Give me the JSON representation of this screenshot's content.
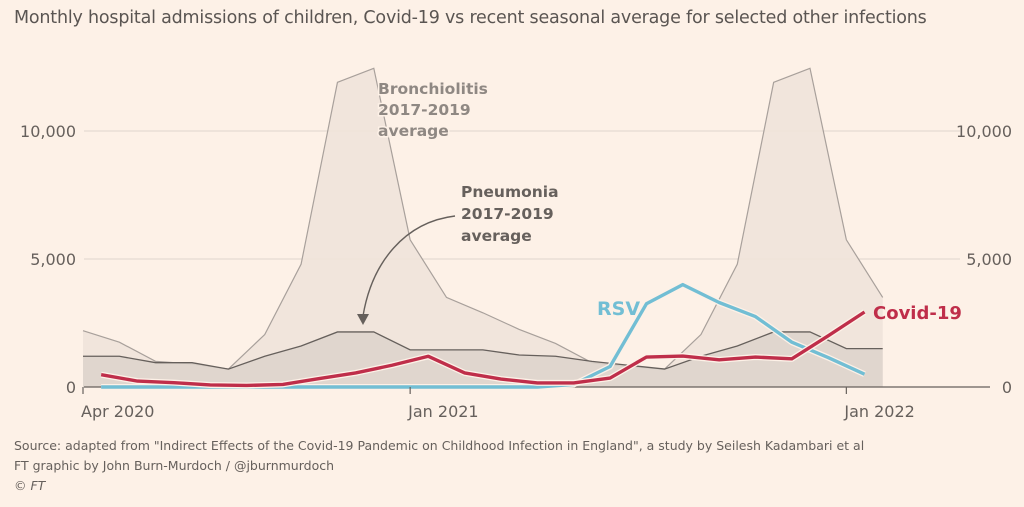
{
  "title": "Monthly hospital admissions of children, Covid-19 vs recent seasonal average for selected other infections",
  "source": {
    "line1": "Source: adapted from \"Indirect Effects of the Covid-19 Pandemic on Childhood Infection in England\",  a study by Seilesh Kadambari et al",
    "line2": "FT graphic by John Burn-Murdoch / @jburnmurdoch",
    "copyright_symbol": "©",
    "copyright_text": "FT"
  },
  "colors": {
    "background": "#fdf1e7",
    "bronchiolitis_fill": "#efe3da",
    "bronchiolitis_line": "#a8a09b",
    "pneumonia_fill": "#ddd3cb",
    "pneumonia_line": "#66605c",
    "rsv": "#72bed4",
    "covid": "#bf2e4a",
    "grid": "#e5dbd2",
    "annotation_grey": "#8f8883",
    "annotation_dark": "#66605c"
  },
  "chart_data": {
    "type": "line",
    "title": "Monthly hospital admissions of children, Covid-19 vs recent seasonal average for selected other infections",
    "xlabel": "",
    "ylabel": "",
    "ylim": [
      0,
      13000
    ],
    "yticks": [
      {
        "value": 0,
        "label": "0"
      },
      {
        "value": 5000,
        "label": "5,000"
      },
      {
        "value": 10000,
        "label": "10,000"
      }
    ],
    "xticks": [
      {
        "month_index": 0,
        "label": "Apr 2020"
      },
      {
        "month_index": 9,
        "label": "Jan 2021"
      },
      {
        "month_index": 21,
        "label": "Jan 2022"
      }
    ],
    "x_start": "Apr 2020",
    "x_months": [
      "Apr 2020",
      "May 2020",
      "Jun 2020",
      "Jul 2020",
      "Aug 2020",
      "Sep 2020",
      "Oct 2020",
      "Nov 2020",
      "Dec 2020",
      "Jan 2021",
      "Feb 2021",
      "Mar 2021",
      "Apr 2021",
      "May 2021",
      "Jun 2021",
      "Jul 2021",
      "Aug 2021",
      "Sep 2021",
      "Oct 2021",
      "Nov 2021",
      "Dec 2021",
      "Jan 2022",
      "Feb 2022"
    ],
    "grid": true,
    "series": [
      {
        "name": "Bronchiolitis 2017-2019 average",
        "kind": "area",
        "values": [
          2200,
          1750,
          1000,
          900,
          700,
          2050,
          4800,
          11900,
          12450,
          5750,
          3500,
          2900,
          2250,
          1700,
          950,
          800,
          700,
          2050,
          4800,
          11900,
          12450,
          5750,
          3500
        ]
      },
      {
        "name": "Pneumonia 2017-2019 average",
        "kind": "area",
        "values": [
          1200,
          1200,
          950,
          950,
          700,
          1200,
          1600,
          2150,
          2150,
          1450,
          1450,
          1450,
          1250,
          1200,
          1000,
          850,
          700,
          1200,
          1600,
          2150,
          2150,
          1500,
          1500
        ]
      },
      {
        "name": "RSV",
        "kind": "line",
        "offset_half_month": true,
        "values": [
          0,
          0,
          0,
          0,
          0,
          0,
          0,
          0,
          0,
          0,
          0,
          0,
          0,
          100,
          800,
          3250,
          4000,
          3300,
          2750,
          1750,
          1150,
          500
        ]
      },
      {
        "name": "Covid-19",
        "kind": "line",
        "offset_half_month": true,
        "values": [
          480,
          230,
          170,
          80,
          60,
          100,
          330,
          550,
          850,
          1200,
          550,
          310,
          160,
          160,
          350,
          1170,
          1210,
          1060,
          1170,
          1100,
          2000,
          2930
        ]
      }
    ],
    "annotations": [
      {
        "id": "bronchiolitis",
        "lines": [
          "Bronchiolitis",
          "2017-2019",
          "average"
        ]
      },
      {
        "id": "pneumonia",
        "lines": [
          "Pneumonia",
          "2017-2019",
          "average"
        ],
        "arrow": true
      },
      {
        "id": "rsv",
        "lines": [
          "RSV"
        ]
      },
      {
        "id": "covid",
        "lines": [
          "Covid-19"
        ]
      }
    ],
    "legend": "none (direct labels)"
  }
}
